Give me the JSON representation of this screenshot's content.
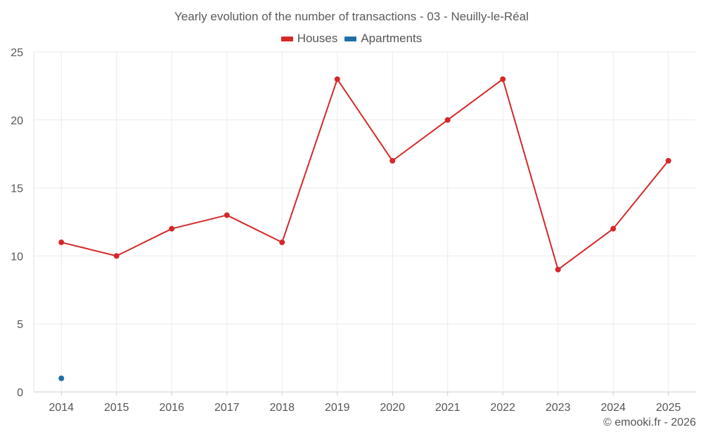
{
  "chart_data": {
    "type": "line",
    "title": "Yearly evolution of the number of transactions - 03 - Neuilly-le-Réal",
    "xlabel": "",
    "ylabel": "",
    "categories": [
      "2014",
      "2015",
      "2016",
      "2017",
      "2018",
      "2019",
      "2020",
      "2021",
      "2022",
      "2023",
      "2024",
      "2025"
    ],
    "yticks": [
      0,
      5,
      10,
      15,
      20,
      25
    ],
    "ylim": [
      0,
      25
    ],
    "grid": true,
    "legend_position": "top-center",
    "series": [
      {
        "name": "Houses",
        "color": "#d62728",
        "values": [
          11,
          10,
          12,
          13,
          11,
          23,
          17,
          20,
          23,
          9,
          12,
          17
        ]
      },
      {
        "name": "Apartments",
        "color": "#1f6fa8",
        "values": [
          1,
          null,
          null,
          null,
          null,
          null,
          null,
          null,
          null,
          null,
          null,
          null
        ]
      }
    ]
  },
  "footer": {
    "credit": "© emooki.fr - 2026"
  }
}
